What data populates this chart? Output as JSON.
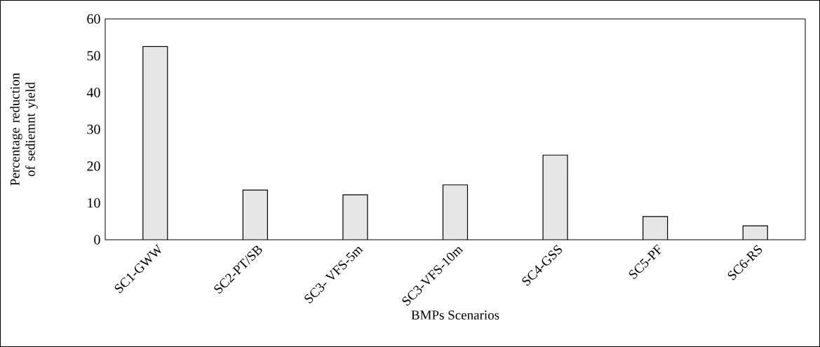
{
  "chart_data": {
    "type": "bar",
    "xlabel": "BMPs Scenarios",
    "ylabel": "Percentage reduction of sediemnt yield",
    "categories": [
      "SC1-GWW",
      "SC2-PT/SB",
      "SC3- VFS-5m",
      "SC3-VFS-10m",
      "SC4-GSS",
      "SC5-PF",
      "SC6-RS"
    ],
    "values": [
      52.5,
      13.5,
      12.2,
      14.9,
      23.0,
      6.3,
      3.8
    ],
    "color": "#e6e6e6",
    "ylim": [
      0,
      60
    ],
    "yticks": [
      0,
      10,
      20,
      30,
      40,
      50,
      60
    ]
  }
}
